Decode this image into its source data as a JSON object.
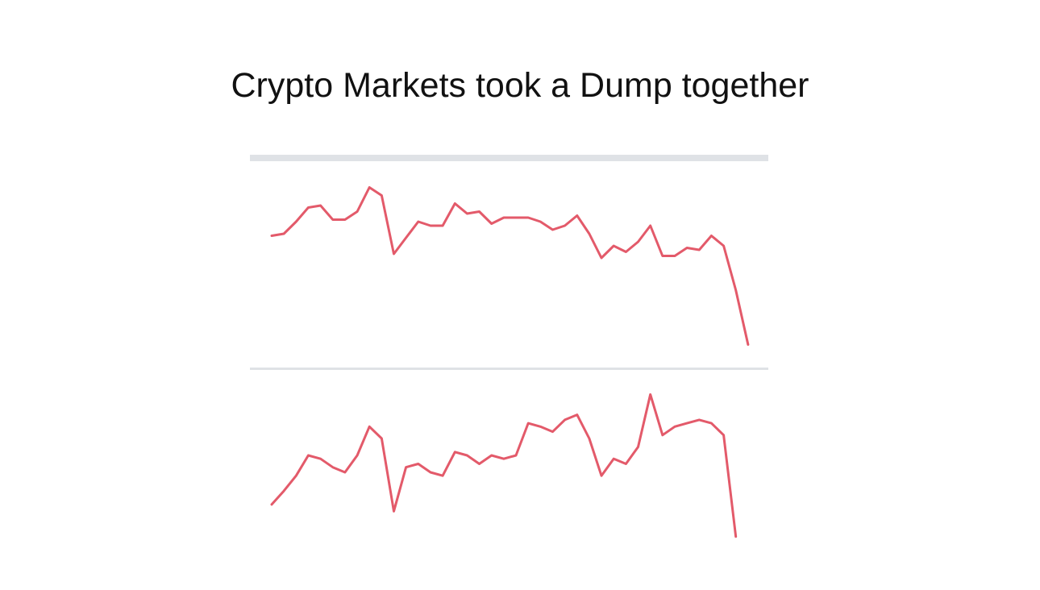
{
  "title": "Crypto Markets took a Dump together",
  "chart_data": [
    {
      "type": "line",
      "color": "#e0485a",
      "ylim": [
        0,
        100
      ],
      "values": [
        63,
        64,
        70,
        77,
        78,
        71,
        71,
        75,
        87,
        83,
        54,
        62,
        70,
        68,
        68,
        79,
        74,
        75,
        69,
        72,
        72,
        72,
        70,
        66,
        68,
        73,
        64,
        52,
        58,
        55,
        60,
        68,
        53,
        53,
        57,
        56,
        63,
        58,
        36,
        9
      ]
    },
    {
      "type": "line",
      "color": "#e0485a",
      "ylim": [
        0,
        100
      ],
      "values": [
        21,
        29,
        38,
        50,
        48,
        43,
        40,
        50,
        67,
        60,
        17,
        43,
        45,
        40,
        38,
        52,
        50,
        45,
        50,
        48,
        50,
        69,
        67,
        64,
        71,
        74,
        60,
        38,
        48,
        45,
        55,
        86,
        62,
        67,
        69,
        71,
        69,
        62,
        2
      ]
    }
  ]
}
